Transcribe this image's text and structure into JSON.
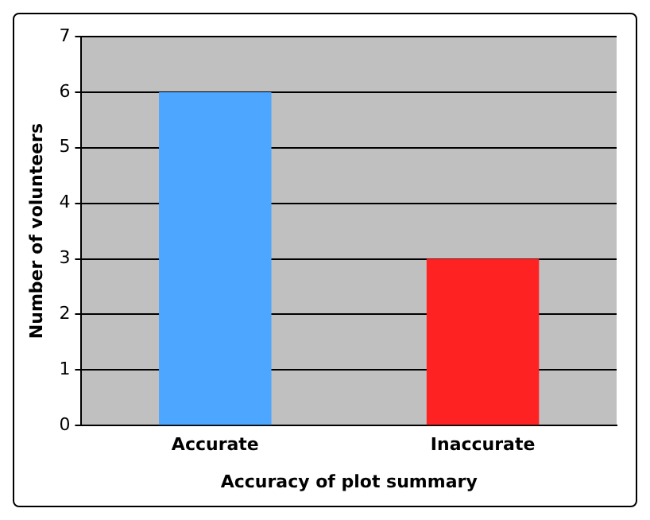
{
  "chart_data": {
    "type": "bar",
    "xlabel": "Accuracy of plot summary",
    "ylabel": "Number of volunteers",
    "categories": [
      "Accurate",
      "Inaccurate"
    ],
    "values": [
      6,
      3
    ],
    "colors": [
      "#4da6ff",
      "#ff2222"
    ],
    "ylim": [
      0,
      7
    ],
    "yticks": [
      0,
      1,
      2,
      3,
      4,
      5,
      6,
      7
    ],
    "grid": "y",
    "legend": false
  }
}
